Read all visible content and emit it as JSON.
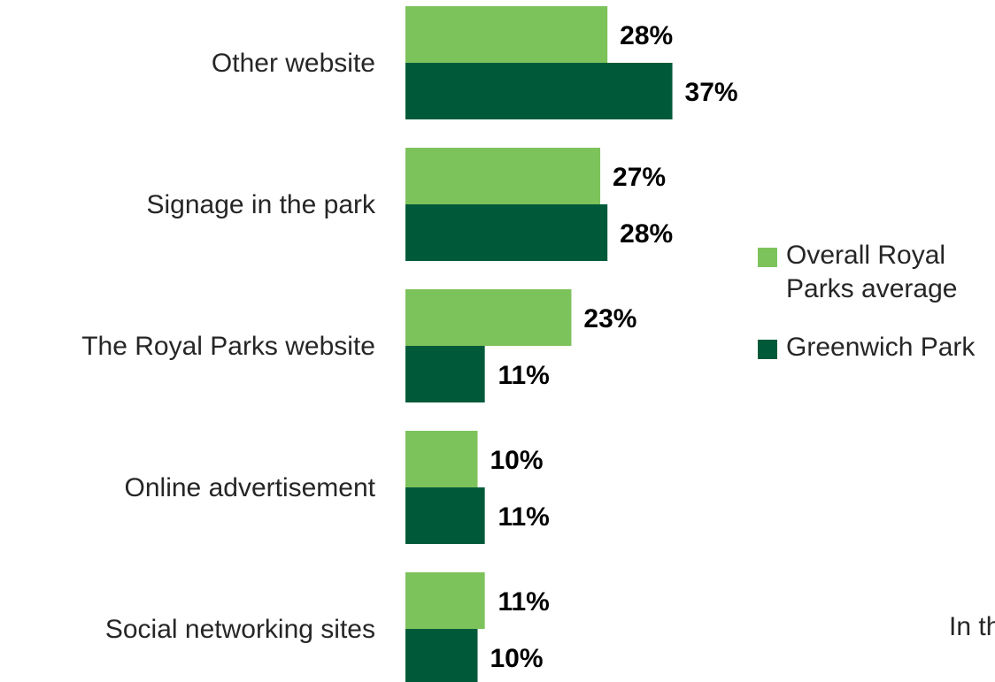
{
  "chart_data": {
    "type": "bar",
    "orientation": "horizontal",
    "categories": [
      "Other website",
      "Signage in the park",
      "The Royal Parks website",
      "Online advertisement",
      "Social networking sites"
    ],
    "series": [
      {
        "name": "Overall Royal Parks average",
        "values": [
          28,
          27,
          23,
          10,
          11
        ],
        "labels": [
          "28%",
          "27%",
          "23%",
          "10%",
          "11%"
        ],
        "color": "#7dc35b"
      },
      {
        "name": "Greenwich Park",
        "values": [
          37,
          28,
          11,
          11,
          10
        ],
        "labels": [
          "37%",
          "28%",
          "11%",
          "11%",
          "10%"
        ],
        "color": "#005a3a"
      }
    ],
    "xlim": [
      0,
      40
    ],
    "grid": false,
    "legend_position": "right"
  },
  "fragment_text": "In th"
}
